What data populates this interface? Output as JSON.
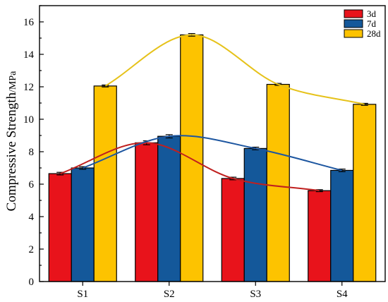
{
  "chart_data": {
    "type": "bar",
    "categories": [
      "S1",
      "S2",
      "S3",
      "S4"
    ],
    "series": [
      {
        "name": "3d",
        "values": [
          6.65,
          8.55,
          6.35,
          5.6
        ],
        "errors": [
          0.08,
          0.12,
          0.08,
          0.06
        ],
        "color": "#e8131b",
        "trend_color": "#c0201f"
      },
      {
        "name": "7d",
        "values": [
          7.0,
          8.95,
          8.2,
          6.85
        ],
        "errors": [
          0.08,
          0.1,
          0.08,
          0.08
        ],
        "color": "#14589a",
        "trend_color": "#1d56a0"
      },
      {
        "name": "28d",
        "values": [
          12.05,
          15.2,
          12.15,
          10.92
        ],
        "errors": [
          0.06,
          0.08,
          0.06,
          0.06
        ],
        "color": "#fdc300",
        "trend_color": "#e6c21a"
      }
    ],
    "ylabel": "Compressive Strength",
    "ylabel_unit": "/MPa",
    "ylim": [
      0,
      17
    ],
    "yticks": [
      0,
      2,
      4,
      6,
      8,
      10,
      12,
      14,
      16
    ],
    "legend_position": "top-right",
    "trend_lines": true
  }
}
